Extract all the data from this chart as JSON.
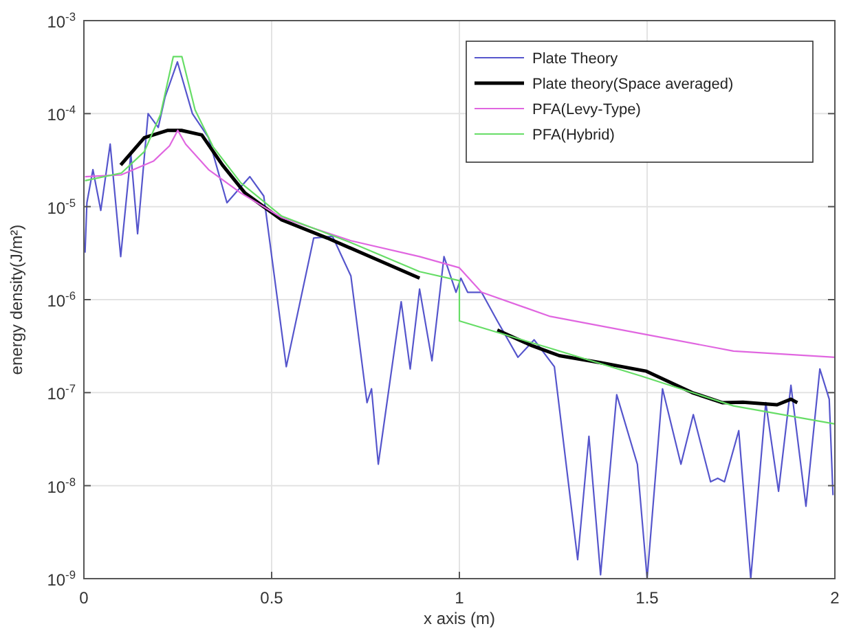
{
  "chart_data": {
    "type": "line",
    "xlabel": "x axis (m)",
    "ylabel": "energy density(J/m²)",
    "log": "y",
    "grid": true,
    "legend": "top right",
    "line_style": "solid",
    "marker": "none",
    "xlim": [
      0,
      2
    ],
    "xticks": [
      0,
      0.5,
      1,
      1.5,
      2
    ],
    "ylim": [
      1e-09,
      0.001
    ],
    "yticks": [
      {
        "value": 1e-09,
        "label": "10$^{-9}$"
      },
      {
        "value": 1e-08,
        "label": "10$^{-8}$"
      },
      {
        "value": 1e-07,
        "label": "10$^{-7}$"
      },
      {
        "value": 1e-06,
        "label": "10$^{-6}$"
      },
      {
        "value": 1e-05,
        "label": "10$^{-5}$"
      },
      {
        "value": 0.0001,
        "label": "10$^{-4}$"
      },
      {
        "value": 0.001,
        "label": "10$^{-3}$"
      }
    ],
    "series": [
      {
        "name": "Plate Theory",
        "color": "#5555cc",
        "x": [
          0.003,
          0.008,
          0.024,
          0.045,
          0.07,
          0.098,
          0.125,
          0.143,
          0.171,
          0.198,
          0.216,
          0.249,
          0.289,
          0.332,
          0.381,
          0.442,
          0.479,
          0.539,
          0.612,
          0.662,
          0.711,
          0.754,
          0.766,
          0.784,
          0.845,
          0.869,
          0.894,
          0.927,
          0.959,
          0.991,
          1.004,
          1.022,
          1.059,
          1.101,
          1.156,
          1.199,
          1.253,
          1.315,
          1.345,
          1.376,
          1.419,
          1.474,
          1.5,
          1.541,
          1.59,
          1.623,
          1.669,
          1.688,
          1.706,
          1.744,
          1.776,
          1.816,
          1.85,
          1.883,
          1.923,
          1.96,
          1.985,
          1.995
        ],
        "values": [
          3.2e-06,
          1.1e-05,
          2.5e-05,
          9.1e-06,
          4.7e-05,
          2.9e-06,
          3.7e-05,
          5.1e-06,
          0.0001,
          7.1e-05,
          0.00015,
          0.00036,
          0.0001,
          5.5e-05,
          1.1e-05,
          2.1e-05,
          1.3e-05,
          1.9e-07,
          4.6e-06,
          4.8e-06,
          1.8e-06,
          7.8e-08,
          1.1e-07,
          1.7e-08,
          9.5e-07,
          1.8e-07,
          1.3e-06,
          2.2e-07,
          2.9e-06,
          1.2e-06,
          1.7e-06,
          1.2e-06,
          1.2e-06,
          5.9e-07,
          2.4e-07,
          3.7e-07,
          1.9e-07,
          1.6e-09,
          3.4e-08,
          1.1e-09,
          9.5e-08,
          1.7e-08,
          1e-09,
          1.1e-07,
          1.7e-08,
          5.8e-08,
          1.1e-08,
          1.2e-08,
          1.1e-08,
          3.9e-08,
          1e-09,
          7.8e-08,
          8.7e-09,
          1.2e-07,
          6e-09,
          1.8e-07,
          8.5e-08,
          7.9e-09
        ]
      },
      {
        "name": "Plate theory(Space averaged)",
        "color": "#000000",
        "x": [
          0.098,
          0.161,
          0.222,
          0.26,
          0.314,
          0.369,
          0.429,
          0.527,
          0.648,
          0.771,
          0.894,
          1.0,
          1.101,
          1.193,
          1.266,
          1.376,
          1.498,
          1.62,
          1.7,
          1.755,
          1.846,
          1.883,
          1.9
        ],
        "values": [
          2.8e-05,
          5.5e-05,
          6.6e-05,
          6.6e-05,
          5.9e-05,
          2.8e-05,
          1.4e-05,
          7.2e-06,
          4.6e-06,
          2.8e-06,
          1.7e-06,
          null,
          4.7e-07,
          3.2e-07,
          2.5e-07,
          2.1e-07,
          1.7e-07,
          1e-07,
          7.8e-08,
          7.9e-08,
          7.4e-08,
          8.5e-08,
          7.8e-08
        ]
      },
      {
        "name": "PFA(Levy-Type)",
        "color": "#e066e0",
        "x": [
          0.003,
          0.1,
          0.186,
          0.228,
          0.25,
          0.271,
          0.332,
          0.418,
          0.527,
          0.711,
          0.894,
          1.0,
          1.059,
          1.242,
          1.486,
          1.73,
          2.0
        ],
        "values": [
          2.1e-05,
          2.2e-05,
          3.1e-05,
          4.5e-05,
          6.6e-05,
          4.7e-05,
          2.5e-05,
          1.4e-05,
          7.6e-06,
          4.3e-06,
          2.9e-06,
          2.2e-06,
          1.2e-06,
          6.6e-07,
          4.3e-07,
          2.8e-07,
          2.4e-07
        ]
      },
      {
        "name": "PFA(Hybrid)",
        "color": "#66dd66",
        "x": [
          0.003,
          0.1,
          0.161,
          0.204,
          0.238,
          0.261,
          0.296,
          0.344,
          0.418,
          0.527,
          0.711,
          0.894,
          1.0,
          1.0,
          1.242,
          1.486,
          1.73,
          2.0
        ],
        "values": [
          1.9e-05,
          2.3e-05,
          3.9e-05,
          9.8e-05,
          0.00041,
          0.00041,
          0.00011,
          4.4e-05,
          1.8e-05,
          7.9e-06,
          4.1e-06,
          2e-06,
          1.6e-06,
          5.9e-07,
          3e-07,
          1.5e-07,
          7.2e-08,
          4.6e-08
        ]
      }
    ]
  }
}
